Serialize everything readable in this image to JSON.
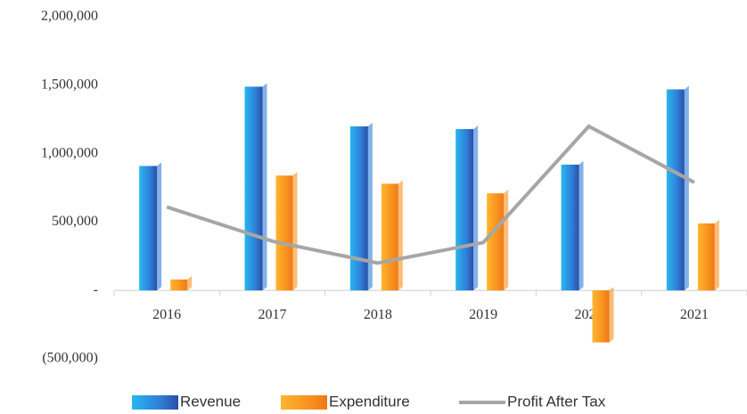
{
  "chart_data": {
    "type": "bar",
    "categories": [
      "2016",
      "2017",
      "2018",
      "2019",
      "2020",
      "2021"
    ],
    "series": [
      {
        "name": "Revenue",
        "type": "bar",
        "color": "#2f7fd8",
        "values": [
          910000,
          1490000,
          1200000,
          1180000,
          920000,
          1470000
        ]
      },
      {
        "name": "Expenditure",
        "type": "bar",
        "color": "#f7931e",
        "values": [
          80000,
          840000,
          780000,
          710000,
          -380000,
          490000
        ]
      },
      {
        "name": "Profit After Tax",
        "type": "line",
        "color": "#a6a6a6",
        "values": [
          610000,
          360000,
          200000,
          350000,
          1200000,
          790000
        ]
      }
    ],
    "ylim": [
      -500000,
      2000000
    ],
    "yticks": [
      {
        "value": -500000,
        "label": "(500,000)"
      },
      {
        "value": 0,
        "label": "-"
      },
      {
        "value": 500000,
        "label": "500,000"
      },
      {
        "value": 1000000,
        "label": "1,000,000"
      },
      {
        "value": 1500000,
        "label": "1,500,000"
      },
      {
        "value": 2000000,
        "label": "2,000,000"
      }
    ],
    "grid": false,
    "legend": "bottom"
  }
}
